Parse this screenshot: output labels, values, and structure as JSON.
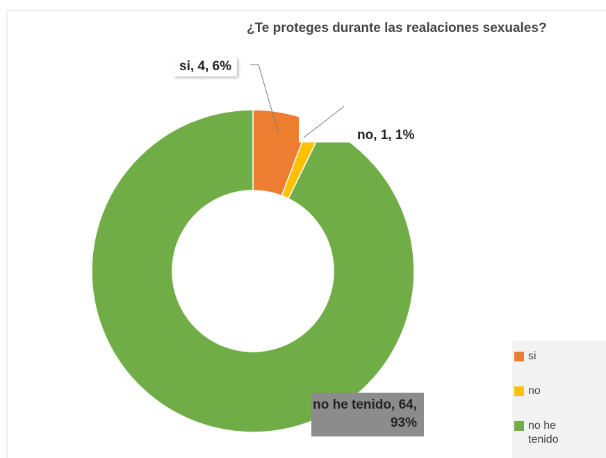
{
  "chart_data": {
    "type": "pie",
    "donut": true,
    "title": "¿Te proteges durante las realaciones sexuales?",
    "categories": [
      "si",
      "no",
      "no he tenido"
    ],
    "values": [
      4,
      1,
      64
    ],
    "value_labels": [
      "si, 4, 6%",
      "no, 1, 1%",
      "no he tenido, 64, 93%"
    ],
    "colors": [
      "#ed7d31",
      "#ffc000",
      "#70ad47"
    ],
    "legend": "right"
  }
}
